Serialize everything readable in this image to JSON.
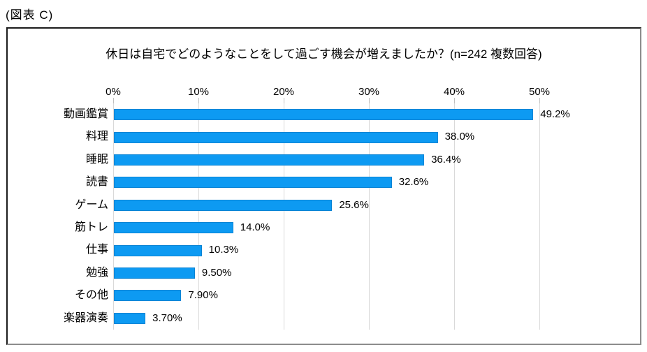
{
  "page": {
    "figure_label": "(図表 C)"
  },
  "colors": {
    "bar": "#0d9af2",
    "bar_edge": "#0a84d4",
    "gridline": "#d9d9d9",
    "tick": "#bfbfbf",
    "border_dark": "#1c1c1c",
    "border_light": "#8c8c8c"
  },
  "chart_data": {
    "type": "bar",
    "orientation": "horizontal",
    "title": "休日は自宅でどのようなことをして過ごす機会が増えましたか？(n=242 複数回答)",
    "categories": [
      "動画鑑賞",
      "料理",
      "睡眠",
      "読書",
      "ゲーム",
      "筋トレ",
      "仕事",
      "勉強",
      "その他",
      "楽器演奏"
    ],
    "values": [
      49.2,
      38.0,
      36.4,
      32.6,
      25.6,
      14.0,
      10.3,
      9.5,
      7.9,
      3.7
    ],
    "value_labels": [
      "49.2%",
      "38.0%",
      "36.4%",
      "32.6%",
      "25.6%",
      "14.0%",
      "10.3%",
      "9.50%",
      "7.90%",
      "3.70%"
    ],
    "xlabel": "",
    "ylabel": "",
    "x_axis": {
      "position": "top",
      "min": 0,
      "max": 50,
      "ticks": [
        "0%",
        "10%",
        "20%",
        "30%",
        "40%",
        "50%"
      ]
    },
    "grid": true,
    "legend": false
  }
}
